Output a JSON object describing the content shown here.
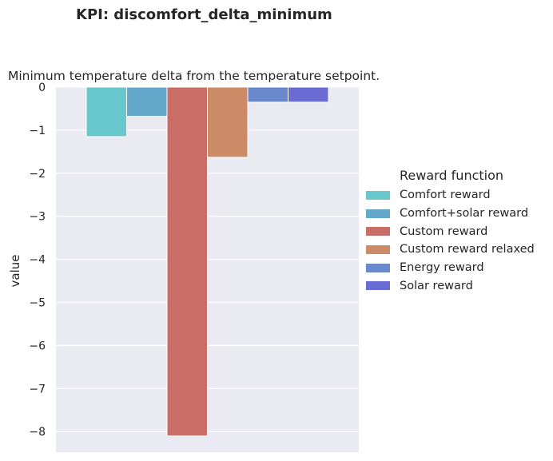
{
  "figure": {
    "title": "KPI: discomfort_delta_minimum",
    "subtitle": "Minimum temperature delta from the temperature setpoint."
  },
  "chart_data": {
    "type": "bar",
    "title": "Minimum temperature delta from the temperature setpoint.",
    "xlabel": "",
    "ylabel": "value",
    "ylim": [
      -8.5,
      0
    ],
    "yticks": [
      0,
      -1,
      -2,
      -3,
      -4,
      -5,
      -6,
      -7,
      -8
    ],
    "ytick_labels": [
      "0",
      "−1",
      "−2",
      "−3",
      "−4",
      "−5",
      "−6",
      "−7",
      "−8"
    ],
    "grid": true,
    "legend_position": "right",
    "legend_title": "Reward function",
    "series": [
      {
        "name": "Comfort reward",
        "values": [
          -1.15
        ],
        "color": "#68c7cd"
      },
      {
        "name": "Comfort+solar reward",
        "values": [
          -0.68
        ],
        "color": "#63a7cb"
      },
      {
        "name": "Custom reward",
        "values": [
          -8.1
        ],
        "color": "#c96d67"
      },
      {
        "name": "Custom reward relaxed",
        "values": [
          -1.63
        ],
        "color": "#cb8b66"
      },
      {
        "name": "Energy reward",
        "values": [
          -0.35
        ],
        "color": "#6a89cd"
      },
      {
        "name": "Solar reward",
        "values": [
          -0.35
        ],
        "color": "#6a6bd3"
      }
    ]
  }
}
